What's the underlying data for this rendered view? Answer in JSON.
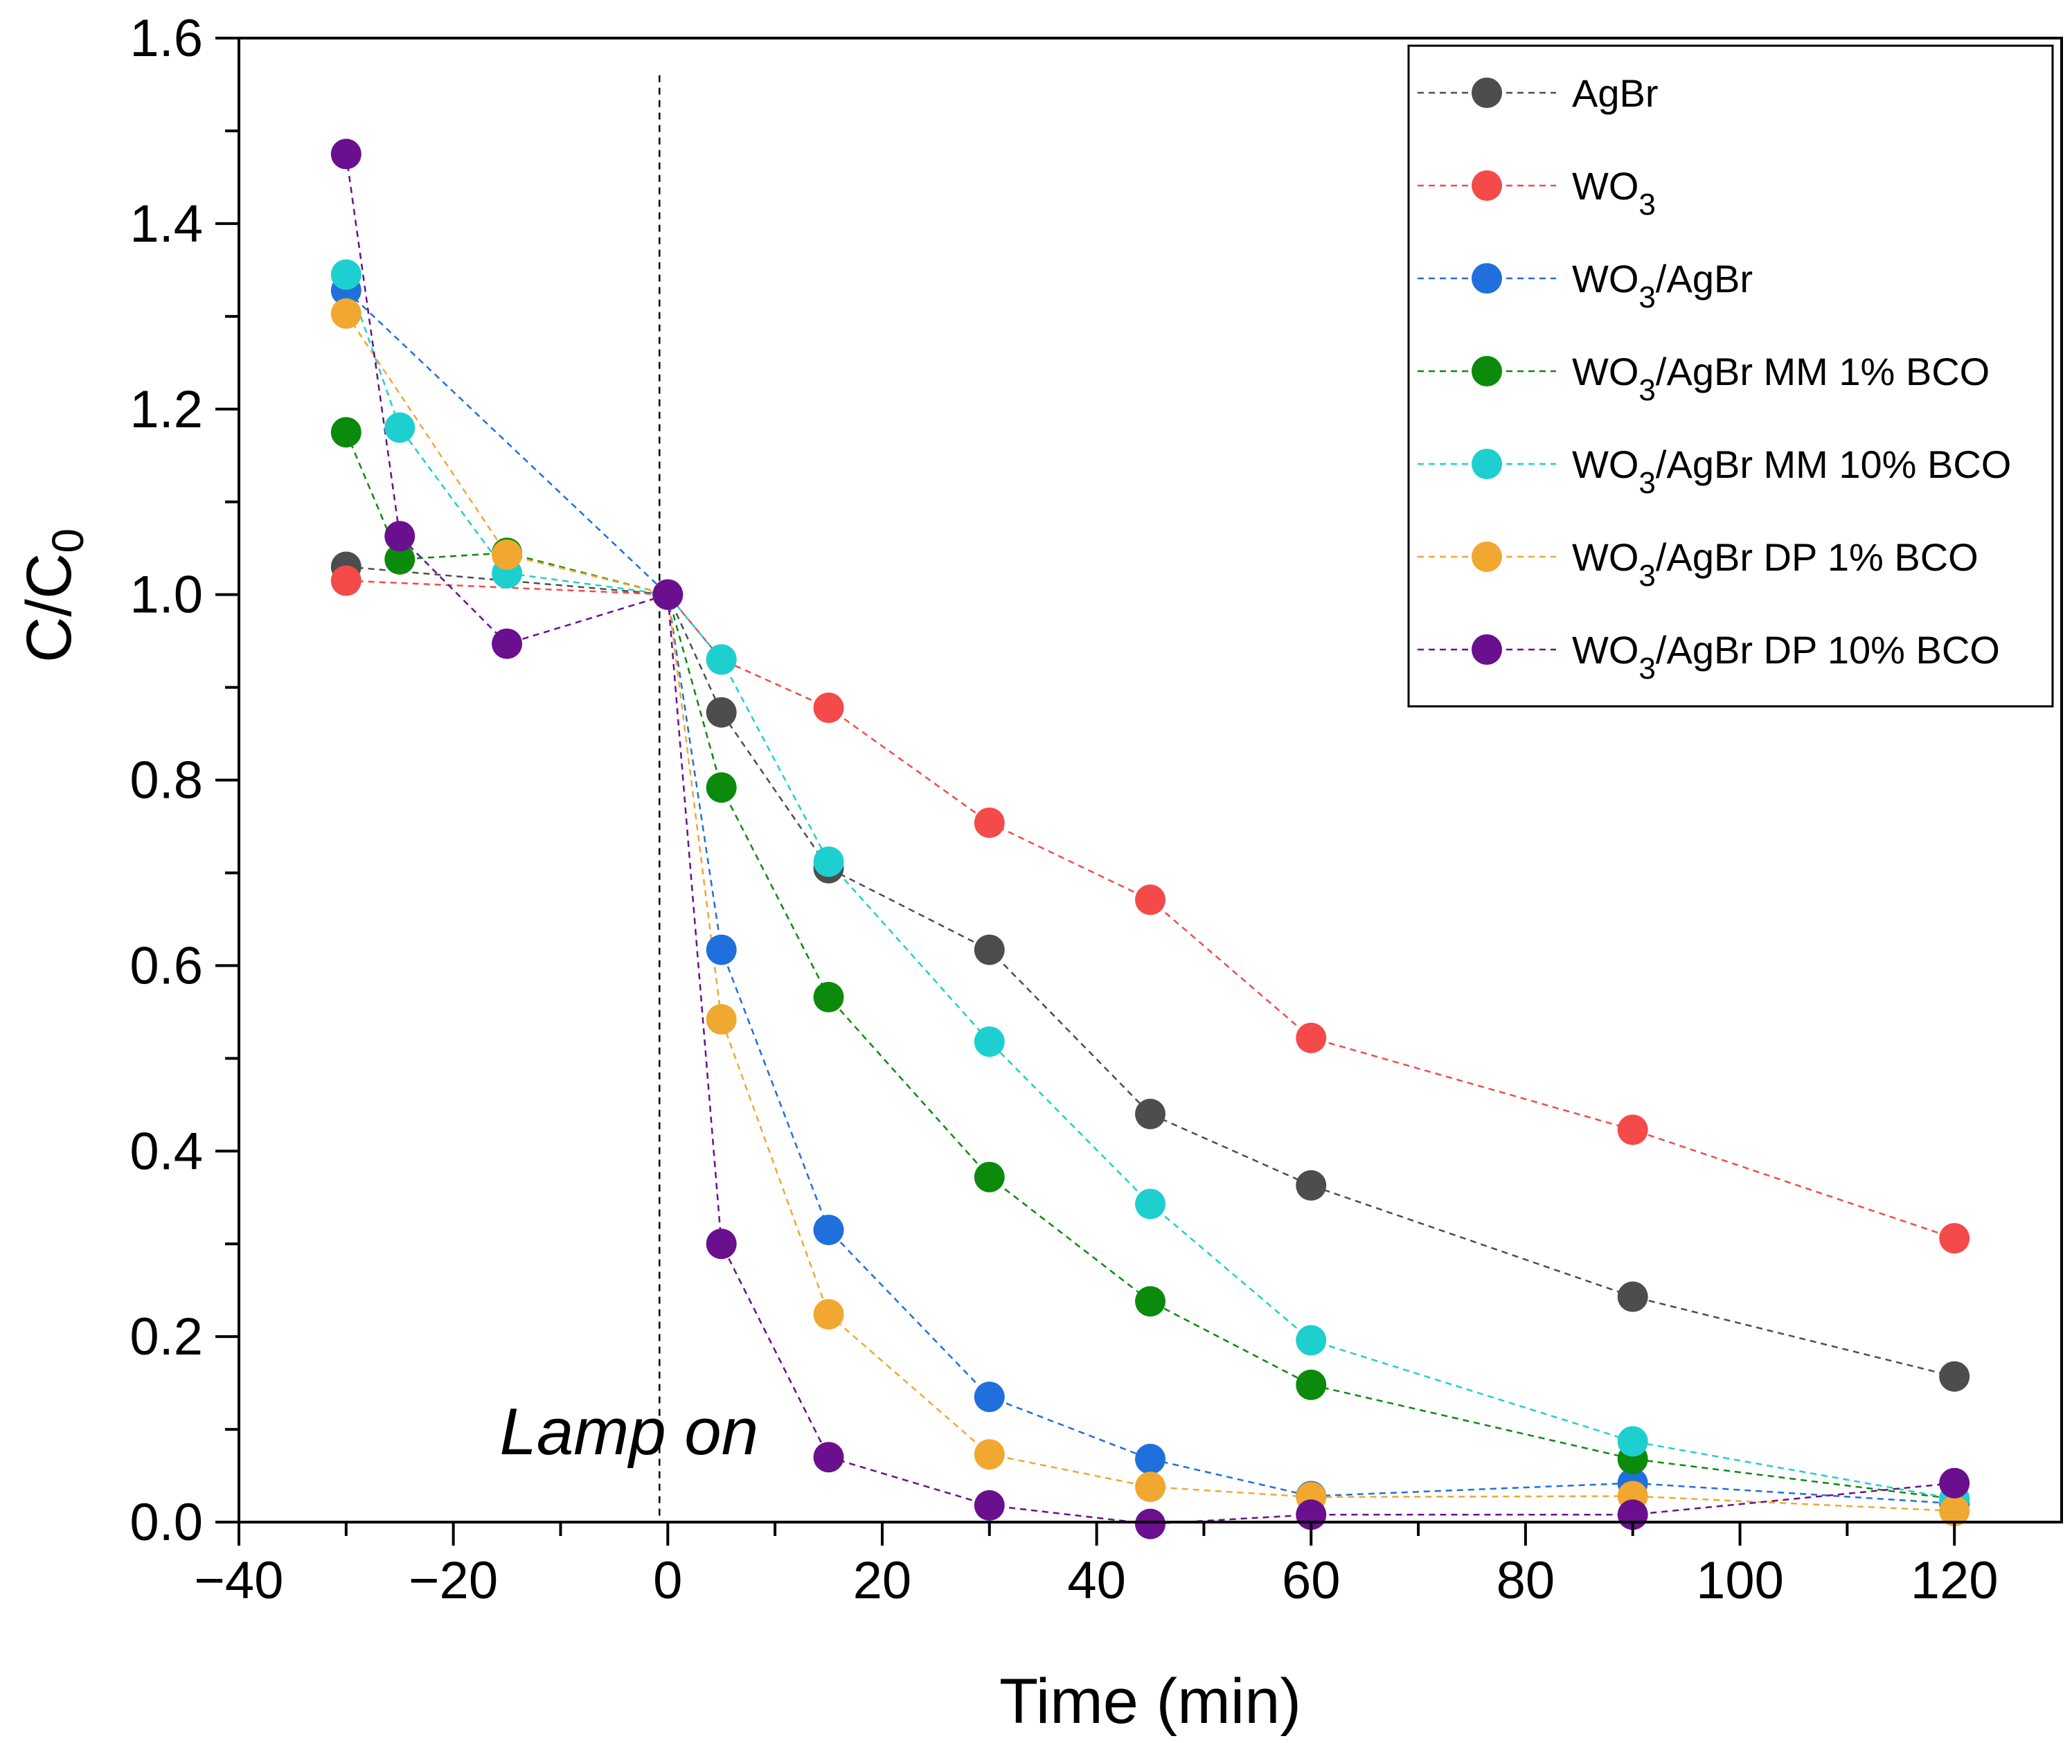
{
  "chart_data": {
    "type": "scatter",
    "title": "",
    "xlabel": "Time (min)",
    "ylabel": {
      "main": "C/C",
      "sub": "0"
    },
    "xlim": [
      -40,
      130
    ],
    "ylim": [
      0.0,
      1.6
    ],
    "xticks": [
      -40,
      -20,
      0,
      20,
      40,
      60,
      80,
      100,
      120
    ],
    "xtick_labels": [
      "−40",
      "−20",
      "0",
      "20",
      "40",
      "60",
      "80",
      "100",
      "120"
    ],
    "yticks": [
      0.0,
      0.2,
      0.4,
      0.6,
      0.8,
      1.0,
      1.2,
      1.4,
      1.6
    ],
    "ytick_labels": [
      "0.0",
      "0.2",
      "0.4",
      "0.6",
      "0.8",
      "1.0",
      "1.2",
      "1.4",
      "1.6"
    ],
    "grid": false,
    "legend_position": "top-right",
    "line_style": "dashed",
    "annotation": {
      "text": "Lamp on",
      "x": 0
    },
    "series": [
      {
        "name": "AgBr",
        "legend": {
          "pre": "AgBr",
          "sub": "",
          "post": ""
        },
        "color": "#4d4d4d",
        "x": [
          -30,
          0,
          5,
          15,
          30,
          45,
          60,
          90,
          120
        ],
        "y": [
          1.03,
          1.0,
          0.873,
          0.705,
          0.617,
          0.44,
          0.363,
          0.243,
          0.157
        ]
      },
      {
        "name": "WO3",
        "legend": {
          "pre": "WO",
          "sub": "3",
          "post": ""
        },
        "color": "#f44a4a",
        "x": [
          -30,
          0,
          5,
          15,
          30,
          45,
          60,
          90,
          120
        ],
        "y": [
          1.015,
          1.0,
          0.93,
          0.878,
          0.754,
          0.671,
          0.522,
          0.423,
          0.306
        ]
      },
      {
        "name": "WO3/AgBr",
        "legend": {
          "pre": "WO",
          "sub": "3",
          "post": "/AgBr"
        },
        "color": "#1f6fdd",
        "x": [
          -30,
          0,
          5,
          15,
          30,
          45,
          60,
          90,
          120
        ],
        "y": [
          1.328,
          1.0,
          0.617,
          0.315,
          0.135,
          0.068,
          0.028,
          0.042,
          0.02
        ]
      },
      {
        "name": "WO3/AgBr MM 1% BCO",
        "legend": {
          "pre": "WO",
          "sub": "3",
          "post": "/AgBr MM 1% BCO"
        },
        "color": "#0b8a0b",
        "x": [
          -30,
          -25,
          -15,
          0,
          5,
          15,
          30,
          45,
          60,
          90,
          120
        ],
        "y": [
          1.175,
          1.038,
          1.045,
          1.0,
          0.792,
          0.566,
          0.372,
          0.238,
          0.148,
          0.068,
          0.025
        ]
      },
      {
        "name": "WO3/AgBr MM 10% BCO",
        "legend": {
          "pre": "WO",
          "sub": "3",
          "post": "/AgBr MM 10% BCO"
        },
        "color": "#1ecfd0",
        "x": [
          -30,
          -25,
          -15,
          0,
          5,
          15,
          30,
          45,
          60,
          90,
          120
        ],
        "y": [
          1.345,
          1.18,
          1.023,
          1.0,
          0.93,
          0.712,
          0.518,
          0.343,
          0.196,
          0.087,
          0.025
        ]
      },
      {
        "name": "WO3/AgBr DP 1% BCO",
        "legend": {
          "pre": "WO",
          "sub": "3",
          "post": "/AgBr DP 1% BCO"
        },
        "color": "#f0a830",
        "x": [
          -30,
          -15,
          0,
          5,
          15,
          30,
          45,
          60,
          90,
          120
        ],
        "y": [
          1.303,
          1.043,
          1.0,
          0.542,
          0.224,
          0.073,
          0.038,
          0.027,
          0.028,
          0.012
        ]
      },
      {
        "name": "WO3/AgBr DP 10% BCO",
        "legend": {
          "pre": "WO",
          "sub": "3",
          "post": "/AgBr DP 10% BCO"
        },
        "color": "#6a0f8e",
        "x": [
          -30,
          -25,
          -15,
          0,
          5,
          15,
          30,
          45,
          60,
          90,
          120
        ],
        "y": [
          1.475,
          1.063,
          0.947,
          1.0,
          0.3,
          0.07,
          0.018,
          -0.002,
          0.008,
          0.008,
          0.042
        ]
      }
    ]
  }
}
